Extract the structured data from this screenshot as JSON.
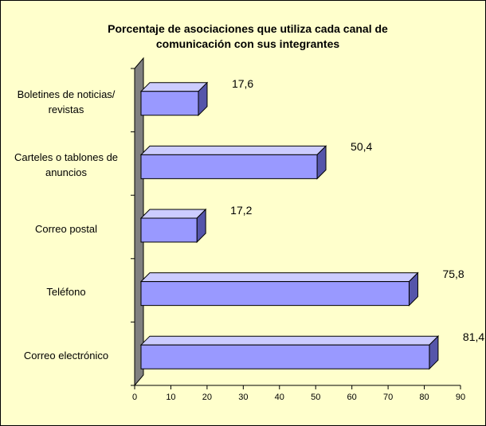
{
  "chart_data": {
    "type": "bar",
    "orientation": "horizontal",
    "title": "Porcentaje de asociaciones que utiliza cada canal de comunicación con sus integrantes",
    "categories": [
      "Boletines de noticias/ revistas",
      "Carteles o tablones de anuncios",
      "Correo postal",
      "Teléfono",
      "Correo electrónico"
    ],
    "values": [
      17.6,
      50.4,
      17.2,
      75.8,
      81.4
    ],
    "value_labels": [
      "17,6",
      "50,4",
      "17,2",
      "75,8",
      "81,4"
    ],
    "color": "#9999ff",
    "xlim": [
      0,
      90
    ],
    "xticks": [
      0,
      10,
      20,
      30,
      40,
      50,
      60,
      70,
      80,
      90
    ]
  }
}
